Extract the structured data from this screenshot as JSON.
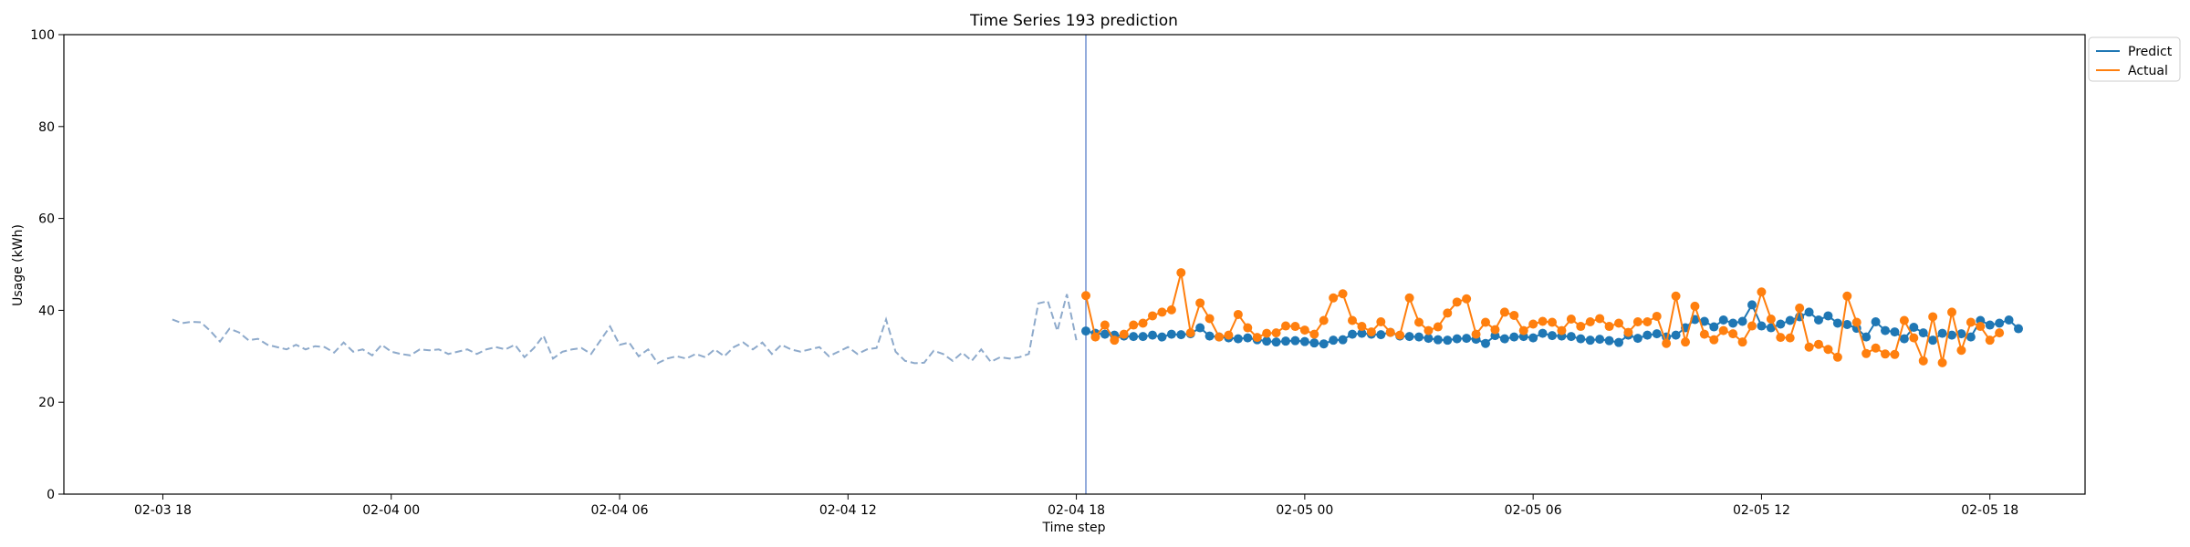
{
  "chart_data": {
    "type": "line",
    "title": "Time Series 193 prediction",
    "xlabel": "Time step",
    "ylabel": "Usage (kWh)",
    "ylim": [
      0,
      100
    ],
    "yticks": [
      0,
      20,
      40,
      60,
      80,
      100
    ],
    "x_unit": "hours since 02-03 18",
    "xlim": [
      -2.6,
      50.5
    ],
    "xticks": [
      {
        "x": 0,
        "label": "02-03 18"
      },
      {
        "x": 6,
        "label": "02-04 00"
      },
      {
        "x": 12,
        "label": "02-04 06"
      },
      {
        "x": 18,
        "label": "02-04 12"
      },
      {
        "x": 24,
        "label": "02-04 18"
      },
      {
        "x": 30,
        "label": "02-05 00"
      },
      {
        "x": 36,
        "label": "02-05 06"
      },
      {
        "x": 42,
        "label": "02-05 12"
      },
      {
        "x": 48,
        "label": "02-05 18"
      }
    ],
    "history": {
      "start": 0.25,
      "step": 0.25,
      "color": "#8eaacb",
      "style": "dashed",
      "values": [
        38.0,
        37.2,
        37.5,
        37.4,
        35.5,
        33.2,
        36.0,
        35.2,
        33.5,
        33.8,
        32.5,
        32.0,
        31.5,
        32.5,
        31.5,
        32.2,
        32.0,
        30.8,
        33.0,
        31.0,
        31.5,
        30.2,
        32.5,
        31.0,
        30.5,
        30.2,
        31.5,
        31.3,
        31.5,
        30.5,
        31.0,
        31.5,
        30.5,
        31.5,
        32.0,
        31.5,
        32.5,
        29.8,
        31.8,
        34.5,
        29.5,
        31.0,
        31.5,
        31.8,
        30.5,
        33.5,
        36.5,
        32.5,
        33.0,
        30.0,
        31.5,
        28.5,
        29.5,
        30.0,
        29.5,
        30.5,
        29.8,
        31.5,
        30.0,
        32.0,
        33.0,
        31.5,
        33.0,
        30.5,
        32.5,
        31.5,
        31.0,
        31.5,
        32.0,
        30.0,
        31.0,
        32.0,
        30.5,
        31.5,
        31.8,
        38.0,
        31.0,
        29.0,
        28.5,
        28.6,
        31.2,
        30.5,
        29.0,
        30.8,
        29.0,
        31.5,
        28.8,
        29.8,
        29.5,
        29.8,
        30.5,
        41.5,
        42.0,
        35.5,
        43.5,
        33.5
      ]
    },
    "forecast_start": 24.25,
    "vline": {
      "x": 24.25,
      "color": "#6f8fd0"
    },
    "series": [
      {
        "name": "Predict",
        "color": "#1f77b4",
        "start": 24.25,
        "step": 0.25,
        "values": [
          35.5,
          35.0,
          34.8,
          34.6,
          34.4,
          34.3,
          34.3,
          34.6,
          34.2,
          34.8,
          34.7,
          34.9,
          36.2,
          34.4,
          34.2,
          34.0,
          33.8,
          34.0,
          33.6,
          33.3,
          33.1,
          33.3,
          33.4,
          33.2,
          32.9,
          32.7,
          33.5,
          33.6,
          34.8,
          35.0,
          34.8,
          34.7,
          35.2,
          34.4,
          34.3,
          34.2,
          33.9,
          33.6,
          33.5,
          33.8,
          33.9,
          33.7,
          32.8,
          34.5,
          33.8,
          34.2,
          34.3,
          34.0,
          35.0,
          34.5,
          34.4,
          34.3,
          33.8,
          33.5,
          33.7,
          33.4,
          33.0,
          34.6,
          33.9,
          34.6,
          34.9,
          34.2,
          34.6,
          36.2,
          38.0,
          37.6,
          36.4,
          37.9,
          37.2,
          37.6,
          41.2,
          36.6,
          36.2,
          37.0,
          37.8,
          38.6,
          39.6,
          37.9,
          38.8,
          37.2,
          36.9,
          36.1,
          34.2,
          37.5,
          35.6,
          35.3,
          33.8,
          36.3,
          35.1,
          33.5,
          35.0,
          34.6,
          34.9,
          34.2,
          37.8,
          36.8,
          37.2,
          37.9,
          36.0
        ]
      },
      {
        "name": "Actual",
        "color": "#ff7f0e",
        "start": 24.25,
        "step": 0.25,
        "values": [
          43.2,
          34.2,
          36.8,
          33.5,
          34.8,
          36.8,
          37.2,
          38.8,
          39.6,
          40.1,
          48.2,
          35.1,
          41.6,
          38.2,
          34.2,
          34.6,
          39.1,
          36.2,
          34.1,
          35.0,
          35.1,
          36.6,
          36.5,
          35.7,
          34.8,
          37.8,
          42.7,
          43.6,
          37.8,
          36.5,
          35.3,
          37.5,
          35.2,
          34.6,
          42.7,
          37.4,
          35.6,
          36.4,
          39.4,
          41.8,
          42.5,
          34.8,
          37.4,
          35.8,
          39.6,
          38.9,
          35.6,
          37.0,
          37.6,
          37.4,
          35.6,
          38.1,
          36.5,
          37.5,
          38.2,
          36.5,
          37.2,
          35.2,
          37.5,
          37.5,
          38.7,
          32.8,
          43.1,
          33.1,
          40.9,
          34.8,
          33.6,
          35.6,
          34.9,
          33.1,
          36.6,
          44.0,
          38.1,
          34.1,
          34.0,
          40.5,
          32.0,
          32.6,
          31.5,
          29.8,
          43.1,
          37.4,
          30.6,
          31.8,
          30.5,
          30.4,
          37.8,
          34.0,
          29.0,
          38.6,
          28.6,
          39.6,
          31.3,
          37.4,
          36.5,
          33.5,
          35.1
        ]
      }
    ],
    "legend": {
      "position": "outside-top-right",
      "entries": [
        "Predict",
        "Actual"
      ]
    },
    "grid": false
  }
}
